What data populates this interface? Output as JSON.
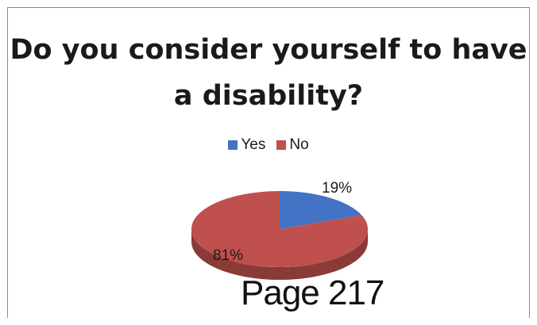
{
  "chart_data": {
    "type": "pie",
    "title": "Do you consider yourself to have a disability?",
    "categories": [
      "Yes",
      "No"
    ],
    "values": [
      19,
      81
    ],
    "labels": [
      "19%",
      "81%"
    ],
    "colors": [
      "#4472c4",
      "#c0504d"
    ],
    "legend_position": "top",
    "style": "3d"
  },
  "stamp": {
    "text": "Page 217"
  }
}
